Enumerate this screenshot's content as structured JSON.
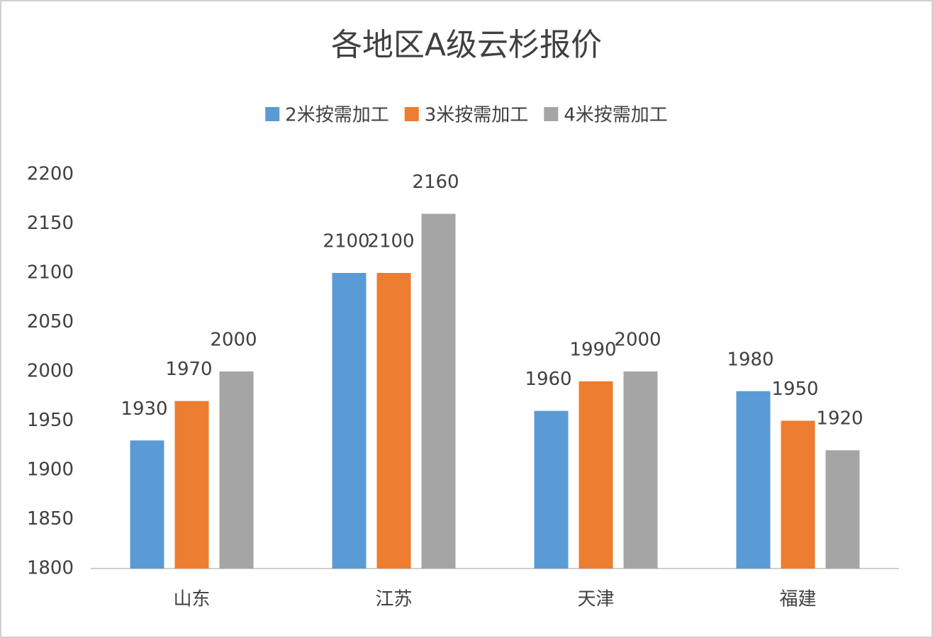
{
  "chart_data": {
    "type": "bar",
    "title": "各地区A级云杉报价",
    "categories": [
      "山东",
      "江苏",
      "天津",
      "福建"
    ],
    "series": [
      {
        "name": "2米按需加工",
        "color": "#5b9bd5",
        "values": [
          1930,
          2100,
          1960,
          1980
        ]
      },
      {
        "name": "3米按需加工",
        "color": "#ed7d31",
        "values": [
          1970,
          2100,
          1990,
          1950
        ]
      },
      {
        "name": "4米按需加工",
        "color": "#a5a5a5",
        "values": [
          2000,
          2160,
          2000,
          1920
        ]
      }
    ],
    "ylim": [
      1800,
      2200
    ],
    "yticks": [
      1800,
      1850,
      1900,
      1950,
      2000,
      2050,
      2100,
      2150,
      2200
    ],
    "grid": false,
    "legend": "top"
  }
}
